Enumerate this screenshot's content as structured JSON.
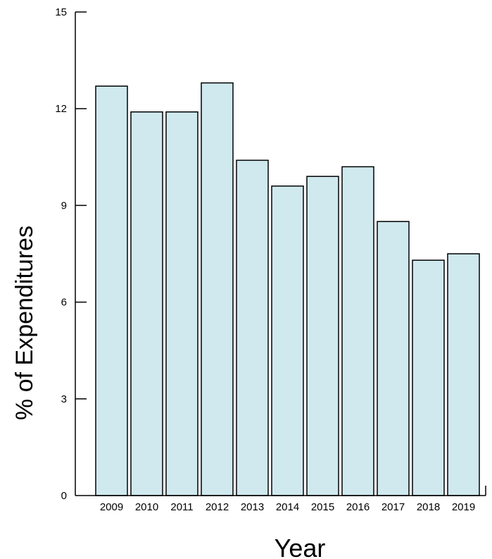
{
  "chart_data": {
    "type": "bar",
    "categories": [
      "2009",
      "2010",
      "2011",
      "2012",
      "2013",
      "2014",
      "2015",
      "2016",
      "2017",
      "2018",
      "2019"
    ],
    "values": [
      12.7,
      11.9,
      11.9,
      12.8,
      10.4,
      9.6,
      9.9,
      10.2,
      8.5,
      7.3,
      7.5
    ],
    "xlabel": "Year",
    "ylabel": "% of Expenditures",
    "ylim": [
      0,
      15
    ],
    "yticks": [
      0,
      3,
      6,
      9,
      12,
      15
    ],
    "grid": false,
    "legend": "none",
    "colors": {
      "bar_fill": "#cfe9ee",
      "bar_stroke": "#000000",
      "axis": "#000000"
    }
  }
}
